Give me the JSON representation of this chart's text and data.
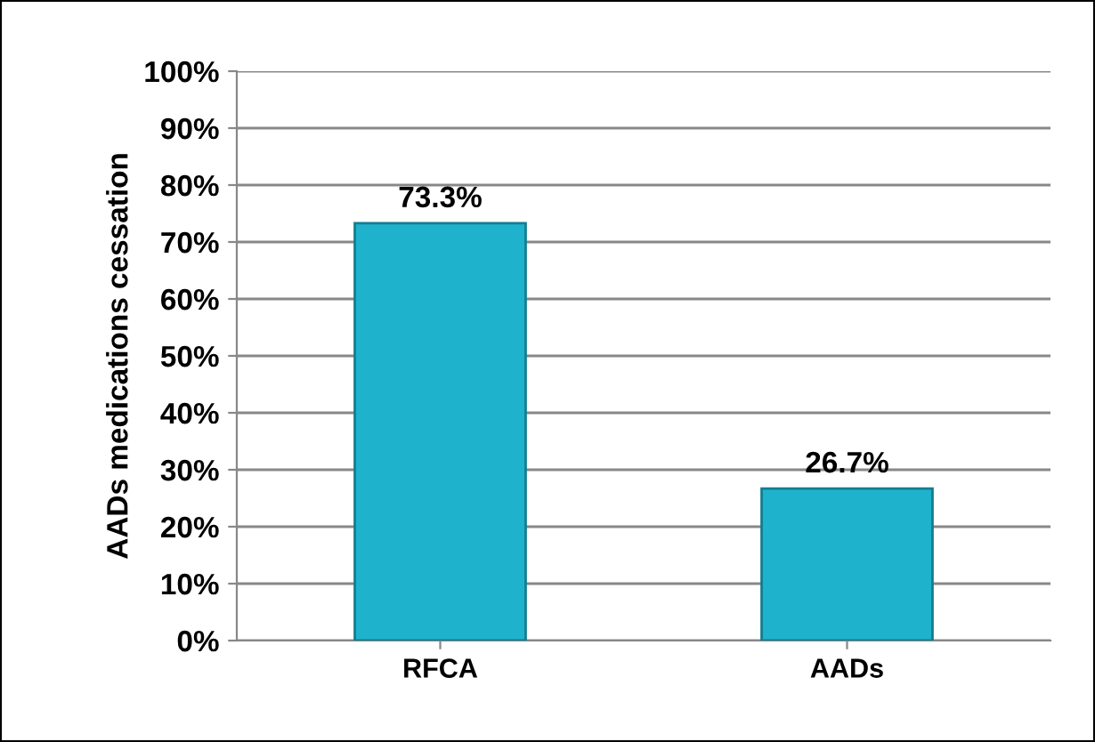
{
  "chart_data": {
    "type": "bar",
    "ylabel": "AADs medications cessation",
    "categories": [
      "RFCA",
      "AADs"
    ],
    "values": [
      73.3,
      26.7
    ],
    "value_labels": [
      "73.3%",
      "26.7%"
    ],
    "color": "#1fb2cc",
    "ylim": [
      0,
      100
    ],
    "yticks": [
      {
        "value": 0,
        "label": "0%"
      },
      {
        "value": 10,
        "label": "10%"
      },
      {
        "value": 20,
        "label": "20%"
      },
      {
        "value": 30,
        "label": "30%"
      },
      {
        "value": 40,
        "label": "40%"
      },
      {
        "value": 50,
        "label": "50%"
      },
      {
        "value": 60,
        "label": "60%"
      },
      {
        "value": 70,
        "label": "70%"
      },
      {
        "value": 80,
        "label": "80%"
      },
      {
        "value": 90,
        "label": "90%"
      },
      {
        "value": 100,
        "label": "100%"
      }
    ],
    "grid": "y",
    "legend": false
  }
}
